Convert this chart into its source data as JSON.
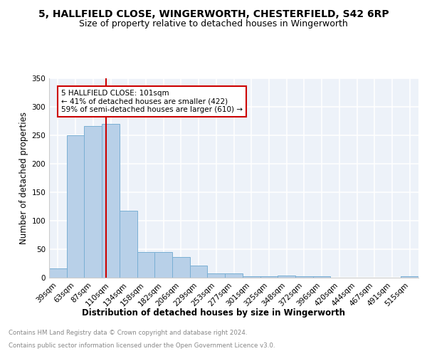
{
  "title_line1": "5, HALLFIELD CLOSE, WINGERWORTH, CHESTERFIELD, S42 6RP",
  "title_line2": "Size of property relative to detached houses in Wingerworth",
  "xlabel": "Distribution of detached houses by size in Wingerworth",
  "ylabel": "Number of detached properties",
  "categories": [
    "39sqm",
    "63sqm",
    "87sqm",
    "110sqm",
    "134sqm",
    "158sqm",
    "182sqm",
    "206sqm",
    "229sqm",
    "253sqm",
    "277sqm",
    "301sqm",
    "325sqm",
    "348sqm",
    "372sqm",
    "396sqm",
    "420sqm",
    "444sqm",
    "467sqm",
    "491sqm",
    "515sqm"
  ],
  "values": [
    16,
    250,
    266,
    270,
    117,
    45,
    45,
    36,
    21,
    8,
    8,
    3,
    3,
    4,
    3,
    3,
    0,
    0,
    0,
    0,
    3
  ],
  "bar_color": "#b8d0e8",
  "bar_edge_color": "#7aafd4",
  "vline_color": "#cc0000",
  "annotation_text": "5 HALLFIELD CLOSE: 101sqm\n← 41% of detached houses are smaller (422)\n59% of semi-detached houses are larger (610) →",
  "annotation_box_color": "#ffffff",
  "annotation_box_edge_color": "#cc0000",
  "ylim": [
    0,
    350
  ],
  "yticks": [
    0,
    50,
    100,
    150,
    200,
    250,
    300,
    350
  ],
  "footer_line1": "Contains HM Land Registry data © Crown copyright and database right 2024.",
  "footer_line2": "Contains public sector information licensed under the Open Government Licence v3.0.",
  "background_color": "#edf2f9",
  "grid_color": "#ffffff",
  "title_fontsize": 10,
  "subtitle_fontsize": 9,
  "tick_fontsize": 7.5,
  "ylabel_fontsize": 8.5,
  "xlabel_fontsize": 8.5,
  "footer_fontsize": 6.2,
  "footer_color": "#888888"
}
